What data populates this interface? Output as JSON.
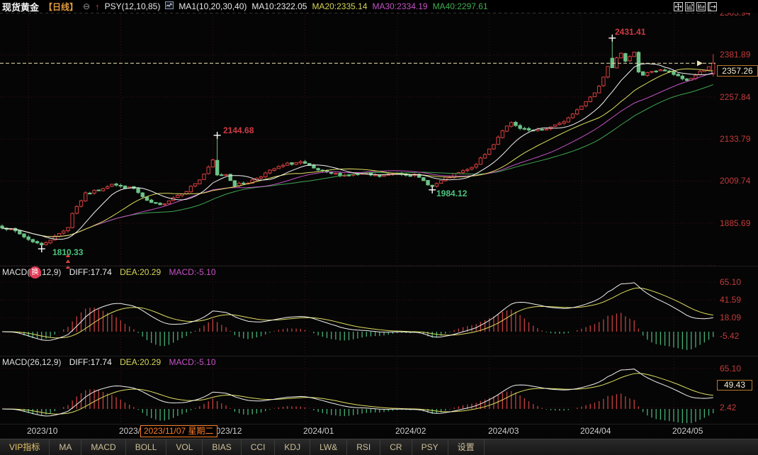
{
  "header": {
    "title": "现货黄金",
    "period": "【日线】",
    "minimize_icon": "⊖",
    "signal_arrow": "↑",
    "psy": "PSY(12,10,85)",
    "ma_group": "MA1(10,20,30,40)",
    "ma10": "MA10:2322.05",
    "ma20": "MA20:2335.14",
    "ma30": "MA30:2334.19",
    "ma40": "MA40:2297.61"
  },
  "main_chart": {
    "y_axis": [
      "2505.94",
      "2381.89",
      "2257.84",
      "2133.79",
      "2009.74",
      "1885.69"
    ],
    "last_price": "2357.26",
    "annotations": {
      "high": "2431.41",
      "spike_high": "2144.68",
      "low_feb": "1984.12",
      "low_oct": "1810.33"
    }
  },
  "macd1": {
    "title": "MACD(26,12,9)",
    "diff": "DIFF:17.74",
    "dea": "DEA:20.29",
    "macd": "MACD:-5.10",
    "axis": [
      "65.10",
      "41.59",
      "18.09",
      "-5.42"
    ]
  },
  "macd2": {
    "title": "MACD(26,12,9)",
    "diff": "DIFF:17.74",
    "dea": "DEA:20.29",
    "macd": "MACD:-5.10",
    "axis_top": "65.10",
    "current": "49.43",
    "axis_bottom": "2.42"
  },
  "x_axis": {
    "labels": [
      "2023/10",
      "2023/11",
      "2023/12",
      "2024/01",
      "2024/02",
      "2024/03",
      "2024/04",
      "2024/05"
    ],
    "crosshair_date": "2023/11/07 星期二"
  },
  "badge": {
    "label": "换"
  },
  "toolbar": {
    "tabs": [
      "VIP指标",
      "MA",
      "MACD",
      "BOLL",
      "VOL",
      "BIAS",
      "CCI",
      "KDJ",
      "LW&",
      "RSI",
      "CR",
      "PSY",
      "设置"
    ]
  },
  "chart_data": {
    "type": "candlestick",
    "instrument": "现货黄金",
    "period": "日线",
    "candles": 163,
    "price_axis": [
      2505.94,
      2381.89,
      2257.84,
      2133.79,
      2009.74,
      1885.69
    ],
    "last_price": 2357.26,
    "close_anchors": [
      [
        0,
        1875
      ],
      [
        3,
        1862
      ],
      [
        6,
        1838
      ],
      [
        9,
        1822
      ],
      [
        12,
        1846
      ],
      [
        15,
        1874
      ],
      [
        16,
        1916
      ],
      [
        19,
        1972
      ],
      [
        22,
        1984
      ],
      [
        25,
        2002
      ],
      [
        27,
        1993
      ],
      [
        30,
        1988
      ],
      [
        33,
        1950
      ],
      [
        36,
        1938
      ],
      [
        39,
        1962
      ],
      [
        42,
        1982
      ],
      [
        45,
        2014
      ],
      [
        47,
        2048
      ],
      [
        48,
        2071
      ],
      [
        49,
        2028
      ],
      [
        51,
        2030
      ],
      [
        53,
        1998
      ],
      [
        56,
        2006
      ],
      [
        59,
        2026
      ],
      [
        62,
        2046
      ],
      [
        65,
        2060
      ],
      [
        68,
        2066
      ],
      [
        71,
        2046
      ],
      [
        74,
        2034
      ],
      [
        78,
        2027
      ],
      [
        82,
        2031
      ],
      [
        86,
        2024
      ],
      [
        90,
        2034
      ],
      [
        94,
        2027
      ],
      [
        97,
        2002
      ],
      [
        98,
        1994
      ],
      [
        101,
        2018
      ],
      [
        104,
        2034
      ],
      [
        107,
        2048
      ],
      [
        110,
        2088
      ],
      [
        112,
        2120
      ],
      [
        114,
        2160
      ],
      [
        116,
        2180
      ],
      [
        118,
        2164
      ],
      [
        121,
        2157
      ],
      [
        124,
        2165
      ],
      [
        127,
        2178
      ],
      [
        129,
        2196
      ],
      [
        131,
        2220
      ],
      [
        133,
        2246
      ],
      [
        135,
        2270
      ],
      [
        136,
        2292
      ],
      [
        137,
        2320
      ],
      [
        138,
        2350
      ],
      [
        139,
        2344
      ],
      [
        140,
        2376
      ],
      [
        141,
        2384
      ],
      [
        142,
        2360
      ],
      [
        143,
        2380
      ],
      [
        144,
        2392
      ],
      [
        145,
        2332
      ],
      [
        146,
        2322
      ],
      [
        148,
        2334
      ],
      [
        150,
        2336
      ],
      [
        152,
        2330
      ],
      [
        154,
        2318
      ],
      [
        156,
        2306
      ],
      [
        158,
        2322
      ],
      [
        160,
        2340
      ],
      [
        162,
        2357.26
      ]
    ],
    "forced_candles": {
      "9": {
        "low": 1810.33,
        "close": 1822
      },
      "49": {
        "open": 2071,
        "high": 2144.68,
        "close": 2028
      },
      "98": {
        "low": 1984.12,
        "close": 1994
      },
      "139": {
        "open": 2372,
        "high": 2431.41,
        "close": 2344
      },
      "162": {
        "open": 2326,
        "close": 2357.26,
        "high": 2384,
        "low": 2318
      }
    },
    "month_start_indices": [
      6,
      27,
      48,
      69,
      90,
      111,
      132,
      153
    ],
    "moving_average_periods": [
      10,
      20,
      30,
      40
    ],
    "macd_params": [
      26,
      12,
      9
    ],
    "macd_last": {
      "diff": 17.74,
      "dea": 20.29,
      "hist": -5.1
    },
    "macd_axis_panel1": [
      65.1,
      41.59,
      18.09,
      -5.42
    ],
    "macd_axis_panel2": [
      65.1,
      2.42
    ],
    "panel2_current": 49.43,
    "markers": {
      "high": {
        "index": 139,
        "price": 2431.41
      },
      "spike_high": {
        "index": 49,
        "price": 2144.68
      },
      "low_oct": {
        "index": 9,
        "price": 1810.33
      },
      "low_feb": {
        "index": 98,
        "price": 1984.12
      }
    },
    "buy_arrows": {
      "index": 15,
      "count": 3
    },
    "colors": {
      "up": "#d94040",
      "down": "#6cc287",
      "ma10": "#f2f2f2",
      "ma20": "#dede60",
      "ma30": "#c653c6",
      "ma40": "#3fa651",
      "diff_line": "#f0f0f0",
      "dea_line": "#dede60",
      "hist_up": "#c84040",
      "hist_down": "#45b077",
      "axis_text": "#c23b3b",
      "grid": "#431018",
      "last_price_line": "#ece5b4",
      "top_line": "#666666"
    }
  }
}
